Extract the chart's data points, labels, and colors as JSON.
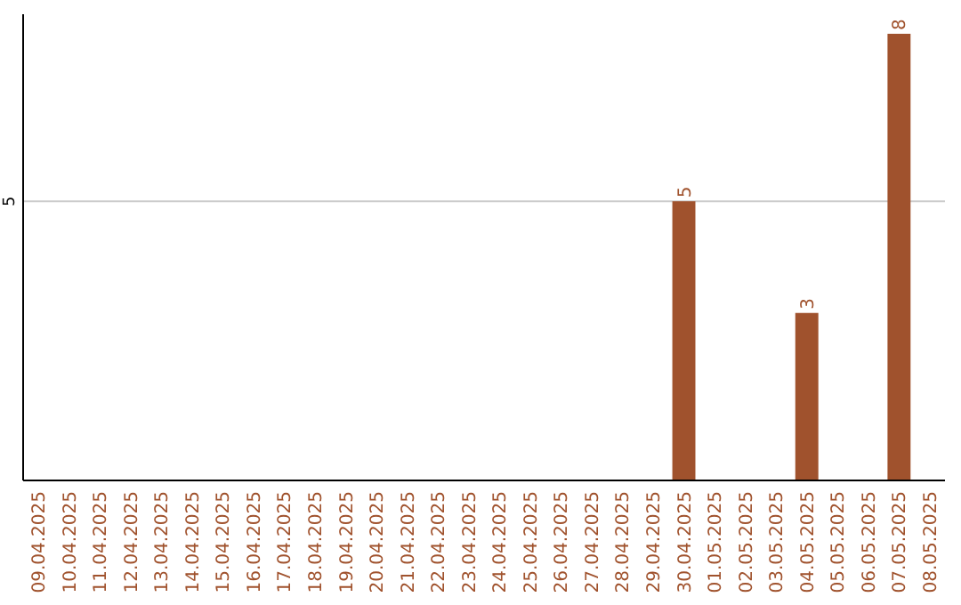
{
  "chart_data": {
    "type": "bar",
    "categories": [
      "09.04.2025",
      "10.04.2025",
      "11.04.2025",
      "12.04.2025",
      "13.04.2025",
      "14.04.2025",
      "15.04.2025",
      "16.04.2025",
      "17.04.2025",
      "18.04.2025",
      "19.04.2025",
      "20.04.2025",
      "21.04.2025",
      "22.04.2025",
      "23.04.2025",
      "24.04.2025",
      "25.04.2025",
      "26.04.2025",
      "27.04.2025",
      "28.04.2025",
      "29.04.2025",
      "30.04.2025",
      "01.05.2025",
      "02.05.2025",
      "03.05.2025",
      "04.05.2025",
      "05.05.2025",
      "06.05.2025",
      "07.05.2025",
      "08.05.2025"
    ],
    "values": [
      null,
      null,
      null,
      null,
      null,
      null,
      null,
      null,
      null,
      null,
      null,
      null,
      null,
      null,
      null,
      null,
      null,
      null,
      null,
      null,
      null,
      5,
      null,
      null,
      null,
      3,
      null,
      null,
      8,
      null
    ],
    "value_labels": [
      null,
      null,
      null,
      null,
      null,
      null,
      null,
      null,
      null,
      null,
      null,
      null,
      null,
      null,
      null,
      null,
      null,
      null,
      null,
      null,
      null,
      "5",
      null,
      null,
      null,
      "3",
      null,
      null,
      "8",
      null
    ],
    "color": "#a0522d",
    "ylim": [
      0,
      8.35
    ],
    "ref_lines": [
      {
        "axis": "y",
        "value": 5,
        "label": "5",
        "color": "#cccccc"
      }
    ]
  }
}
